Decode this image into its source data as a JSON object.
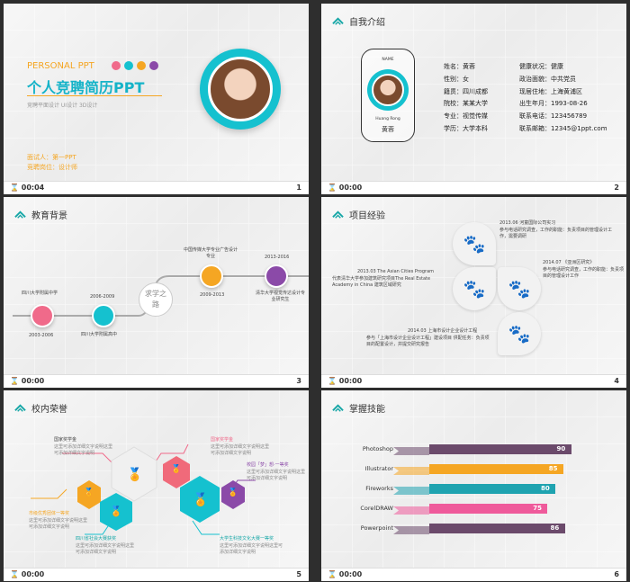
{
  "slides": [
    {
      "num": "1",
      "time": "00:04",
      "title_en": "PERSONAL PPT",
      "title_cn": "个人竞聘简历PPT",
      "subtitle": "竞聘平面设计 UI设计 3D设计",
      "interviewee": "面试人：第一PPT",
      "position": "竞聘岗位：设计师",
      "dots": [
        "#f06a8a",
        "#15c1cf",
        "#f5a623",
        "#8b4aa8"
      ]
    },
    {
      "num": "2",
      "time": "00:00",
      "title": "自我介绍",
      "card_name_label": "NAME",
      "card_name_en": "Huang  Rong",
      "card_name_cn": "黄蓉",
      "info_left": [
        "姓名：黄蓉",
        "性别：女",
        "籍贯：四川成都",
        "院校：某某大学",
        "专业：视觉传媒",
        "学历：大学本科"
      ],
      "info_right": [
        "健康状况：健康",
        "政治面貌：中共党员",
        "现居住地：上海黄浦区",
        "出生年月：1993-08-26",
        "联系电话：123456789",
        "联系邮箱：12345@1ppt.com"
      ]
    },
    {
      "num": "3",
      "time": "00:00",
      "title": "教育背景",
      "center_text": "求学之路",
      "items": [
        {
          "top": "四川大学附属中学",
          "bottom": "2003-2006",
          "color": "#f06a8a"
        },
        {
          "top": "2006-2009",
          "bottom": "四川大学附属高中",
          "color": "#15c1cf"
        },
        {
          "top": "中国传媒大学专业广告设计专业",
          "bottom": "2009-2013",
          "color": "#f5a623"
        },
        {
          "top": "2013-2016",
          "bottom": "清华大学视觉传达设计专业研究生",
          "color": "#8b4aa8"
        }
      ]
    },
    {
      "num": "4",
      "time": "00:00",
      "title": "项目经验",
      "items": [
        {
          "date": "2013.06",
          "title": "河童国际公司实习",
          "desc": "参与电话研究调查，工作的职能：负责项目的管理设计工作，需要调研"
        },
        {
          "date": "2013.03",
          "title": "The Asian Cities Program",
          "desc": "代表清华大学参加建筑研究项目The Real Estate Academy in China 建筑区域研究"
        },
        {
          "date": "2014.07",
          "title": "《亚洲区研究》",
          "desc": "参与电话研究调查，工作的职能：负责项目的管理设计工作"
        },
        {
          "date": "2014.03",
          "title": "上海市设计企业设计工程",
          "desc": "参与「上海市设计企业设计工程」建设项目 供配任务：负责项目的配置设计，并提交研究报告"
        }
      ]
    },
    {
      "num": "5",
      "time": "00:00",
      "title": "校内荣誉",
      "items": [
        {
          "title": "国家奖学金",
          "desc": "这里可添加详细文字说明这里可添加详细文字说明"
        },
        {
          "title": "国家奖学金",
          "desc": "这里可添加详细文字说明这里可添加详细文字说明"
        },
        {
          "title": "校园「梦」想·一等奖",
          "desc": "这里可添加详细文字说明这里可添加详细文字说明"
        },
        {
          "title": "市级优秀团体一等奖",
          "desc": "这里可添加详细文字说明这里可添加详细文字说明"
        },
        {
          "title": "四川省社会大赛获奖",
          "desc": "这里可添加详细文字说明这里可添加详细文字说明"
        },
        {
          "title": "大学生科技文化大赛一等奖",
          "desc": "这里可添加详细文字说明这里可添加详细文字说明"
        }
      ]
    },
    {
      "num": "6",
      "time": "00:00",
      "title": "掌握技能",
      "skills": [
        {
          "name": "Photoshop",
          "value": 90,
          "color": "#6b4a6b"
        },
        {
          "name": "Illustrator",
          "value": 85,
          "color": "#f5a623"
        },
        {
          "name": "Fireworks",
          "value": 80,
          "color": "#1fa3b0"
        },
        {
          "name": "CorelDRAW",
          "value": 75,
          "color": "#ef5a9b"
        },
        {
          "name": "Powerpoint",
          "value": 86,
          "color": "#6b4a6b"
        }
      ]
    }
  ]
}
